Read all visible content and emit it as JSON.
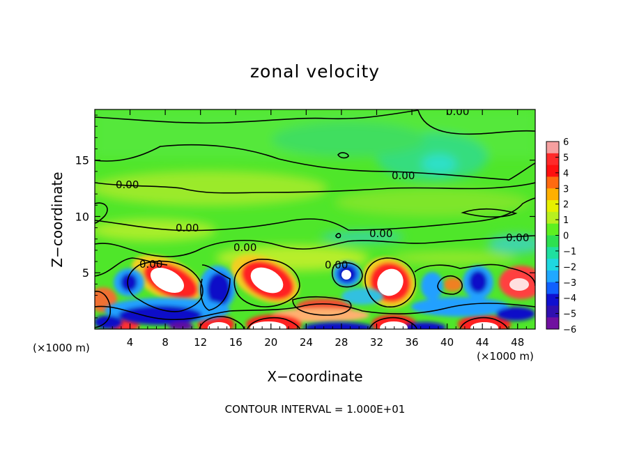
{
  "chart_data": {
    "type": "heatmap",
    "title": "zonal velocity",
    "xlabel": "X−coordinate",
    "ylabel": "Z−coordinate",
    "x_scale_note": "(×1000 m)",
    "y_scale_note": "(×1000 m)",
    "xlim": [
      0,
      50
    ],
    "ylim": [
      0,
      19.5
    ],
    "x_ticks": [
      4,
      8,
      12,
      16,
      20,
      24,
      28,
      32,
      36,
      40,
      44,
      48
    ],
    "y_ticks": [
      5,
      10,
      15
    ],
    "colorbar": {
      "ticks": [
        6,
        5,
        4,
        3,
        2,
        1,
        0,
        -1,
        -2,
        -3,
        -4,
        -5,
        -6
      ],
      "tick_labels": [
        "6",
        "5",
        "4",
        "3",
        "2",
        "1",
        "0",
        "−1",
        "−2",
        "−3",
        "−4",
        "−5",
        "−6"
      ],
      "range": [
        -6,
        6
      ]
    },
    "contour_labels": [
      "0.00",
      "0.00",
      "0.00",
      "0.00",
      "0.00",
      "0.00",
      "0.00",
      "0.00",
      "0.00",
      "0.00"
    ],
    "footnote": "CONTOUR INTERVAL = 1.000E+01",
    "cells": [
      {
        "x": 7,
        "z": 4.4,
        "v": 6.5
      },
      {
        "x": 19,
        "z": 4.6,
        "v": 6.5
      },
      {
        "x": 33,
        "z": 4.4,
        "v": 6.5
      },
      {
        "x": 48,
        "z": 4.3,
        "v": 5.5
      },
      {
        "x": 14,
        "z": 3.8,
        "v": -5.5
      },
      {
        "x": 28,
        "z": 5.0,
        "v": -5.5
      },
      {
        "x": 39,
        "z": 4.0,
        "v": -3.5
      },
      {
        "x": 44,
        "z": 4.6,
        "v": -5.5
      },
      {
        "x": 4,
        "z": 0.5,
        "v": 4.5
      },
      {
        "x": 20,
        "z": 0.6,
        "v": 6.5
      },
      {
        "x": 34,
        "z": 0.6,
        "v": 6.5
      },
      {
        "x": 45,
        "z": 0.6,
        "v": 6.5
      },
      {
        "x": 11,
        "z": 0.4,
        "v": -5.5
      },
      {
        "x": 26,
        "z": 0.4,
        "v": -5
      }
    ]
  }
}
